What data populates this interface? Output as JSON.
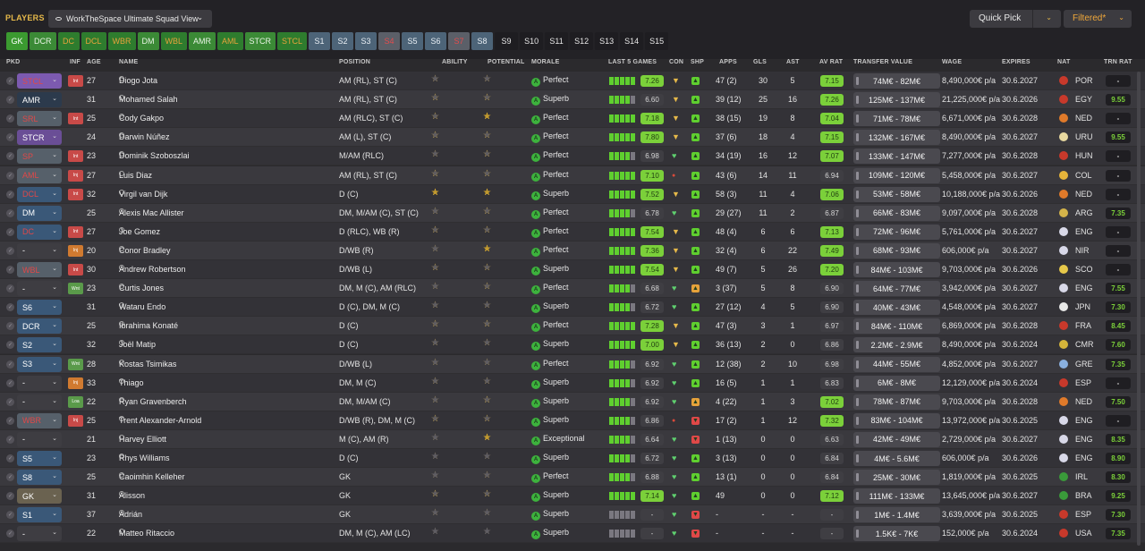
{
  "header": {
    "title": "PLAYERS",
    "view_label": "WorkTheSpace Ultimate Squad View",
    "quick_pick": "Quick Pick",
    "filter": "Filtered*"
  },
  "position_pills": [
    {
      "label": "GK",
      "style": "gk"
    },
    {
      "label": "DCR",
      "style": "pos"
    },
    {
      "label": "DC",
      "style": "alt"
    },
    {
      "label": "DCL",
      "style": "alt"
    },
    {
      "label": "WBR",
      "style": "alt"
    },
    {
      "label": "DM",
      "style": "pos"
    },
    {
      "label": "WBL",
      "style": "alt"
    },
    {
      "label": "AMR",
      "style": "pos"
    },
    {
      "label": "AML",
      "style": "alt"
    },
    {
      "label": "STCR",
      "style": "pos"
    },
    {
      "label": "STCL",
      "style": "alt"
    },
    {
      "label": "S1",
      "style": "s"
    },
    {
      "label": "S2",
      "style": "s"
    },
    {
      "label": "S3",
      "style": "s"
    },
    {
      "label": "S4",
      "style": "sr"
    },
    {
      "label": "S5",
      "style": "s"
    },
    {
      "label": "S6",
      "style": "s"
    },
    {
      "label": "S7",
      "style": "sr"
    },
    {
      "label": "S8",
      "style": "s"
    },
    {
      "label": "S9",
      "style": "sk"
    },
    {
      "label": "S10",
      "style": "sk"
    },
    {
      "label": "S11",
      "style": "sk"
    },
    {
      "label": "S12",
      "style": "sk"
    },
    {
      "label": "S13",
      "style": "sk"
    },
    {
      "label": "S14",
      "style": "sk"
    },
    {
      "label": "S15",
      "style": "sk"
    }
  ],
  "columns": {
    "pkd": "PKD",
    "inf": "INF",
    "age": "AGE",
    "name": "NAME",
    "position": "POSITION",
    "ability": "ABILITY",
    "potential": "POTENTIAL",
    "morale": "MORALE",
    "last5": "LAST 5 GAMES",
    "con": "CON",
    "shp": "SHP",
    "apps": "APPS",
    "gls": "GLS",
    "ast": "AST",
    "avrat": "AV RAT",
    "value": "TRANSFER VALUE",
    "wage": "WAGE",
    "expires": "EXPIRES",
    "nat": "NAT",
    "trn": "TRN RAT"
  },
  "colors": {
    "accent": "#e6b94a",
    "filter": "#f0a83a",
    "pill_green": "#3b8a36",
    "form_green": "#5fcf2f",
    "rating_green": "#7bd03a",
    "rating_grey": "#3f3e43"
  },
  "rows": [
    {
      "pkd": "STCL",
      "pkd_bg": "#7c5ab0",
      "pkd_fg": "#e04848",
      "inf": "Int",
      "inf_bg": "#c84a48",
      "age": "27",
      "name": "Diogo Jota",
      "position": "AM (RL), ST (C)",
      "ability": 3,
      "potential": 3,
      "morale": "Perfect",
      "form": 5,
      "rating": "7.26",
      "rating_hl": true,
      "con": "shield",
      "shp": "up",
      "apps": "47 (2)",
      "gls": "30",
      "ast": "5",
      "avrat": "7.15",
      "avrat_hl": true,
      "value": "74M€ - 82M€",
      "wage": "8,490,000€ p/a",
      "expires": "30.6.2027",
      "nat": "POR",
      "nat_c": "#c8392b",
      "trn": "-",
      "trn_c": "#d4d4d4"
    },
    {
      "pkd": "AMR",
      "pkd_bg": "#2c3a4c",
      "pkd_fg": "#ffffff",
      "inf": "",
      "inf_bg": "",
      "age": "31",
      "name": "Mohamed Salah",
      "position": "AM (RL), ST (C)",
      "ability": 4,
      "potential": 4,
      "morale": "Superb",
      "form": 4,
      "rating": "6.60",
      "rating_hl": false,
      "con": "shield",
      "shp": "up",
      "apps": "39 (12)",
      "gls": "25",
      "ast": "16",
      "avrat": "7.26",
      "avrat_hl": true,
      "value": "125M€ - 137M€",
      "wage": "21,225,000€ p/a",
      "expires": "30.6.2026",
      "nat": "EGY",
      "nat_c": "#c8392b",
      "trn": "9.55",
      "trn_c": "#7bd03a"
    },
    {
      "pkd": "SRL",
      "pkd_bg": "#56606a",
      "pkd_fg": "#e04848",
      "inf": "Int",
      "inf_bg": "#c84a48",
      "age": "25",
      "name": "Cody Gakpo",
      "position": "AM (RLC), ST (C)",
      "ability": 3.5,
      "potential": 4.5,
      "morale": "Perfect",
      "form": 5,
      "rating": "7.18",
      "rating_hl": true,
      "con": "shield",
      "shp": "up",
      "apps": "38 (15)",
      "gls": "19",
      "ast": "8",
      "avrat": "7.04",
      "avrat_hl": true,
      "value": "71M€ - 78M€",
      "wage": "6,671,000€ p/a",
      "expires": "30.6.2028",
      "nat": "NED",
      "nat_c": "#e07a2a",
      "trn": "-",
      "trn_c": "#d4d4d4"
    },
    {
      "pkd": "STCR",
      "pkd_bg": "#6a4e96",
      "pkd_fg": "#ffffff",
      "inf": "",
      "inf_bg": "",
      "age": "24",
      "name": "Darwin Núñez",
      "position": "AM (L), ST (C)",
      "ability": 4,
      "potential": 4,
      "morale": "Perfect",
      "form": 5,
      "rating": "7.80",
      "rating_hl": true,
      "con": "shield",
      "shp": "up",
      "apps": "37 (6)",
      "gls": "18",
      "ast": "4",
      "avrat": "7.15",
      "avrat_hl": true,
      "value": "132M€ - 167M€",
      "wage": "8,490,000€ p/a",
      "expires": "30.6.2027",
      "nat": "URU",
      "nat_c": "#e8d9a0",
      "trn": "9.55",
      "trn_c": "#7bd03a"
    },
    {
      "pkd": "SP",
      "pkd_bg": "#56606a",
      "pkd_fg": "#e04848",
      "inf": "Int",
      "inf_bg": "#c84a48",
      "age": "23",
      "name": "Dominik Szoboszlai",
      "position": "M/AM (RLC)",
      "ability": 3,
      "potential": 4,
      "morale": "Perfect",
      "form": 4,
      "rating": "6.98",
      "rating_hl": false,
      "con": "heart",
      "shp": "up",
      "apps": "34 (19)",
      "gls": "16",
      "ast": "12",
      "avrat": "7.07",
      "avrat_hl": true,
      "value": "133M€ - 147M€",
      "wage": "7,277,000€ p/a",
      "expires": "30.6.2028",
      "nat": "HUN",
      "nat_c": "#c8392b",
      "trn": "-",
      "trn_c": "#d4d4d4"
    },
    {
      "pkd": "AML",
      "pkd_bg": "#56606a",
      "pkd_fg": "#e04848",
      "inf": "Inj",
      "inf_bg": "#c84a48",
      "age": "27",
      "name": "Luis Diaz",
      "position": "AM (RL), ST (C)",
      "ability": 4,
      "potential": 4,
      "morale": "Perfect",
      "form": 5,
      "rating": "7.10",
      "rating_hl": true,
      "con": "dot",
      "shp": "up",
      "apps": "43 (6)",
      "gls": "14",
      "ast": "11",
      "avrat": "6.94",
      "avrat_hl": false,
      "value": "109M€ - 120M€",
      "wage": "5,458,000€ p/a",
      "expires": "30.6.2027",
      "nat": "COL",
      "nat_c": "#e6b43a",
      "trn": "-",
      "trn_c": "#d4d4d4"
    },
    {
      "pkd": "DCL",
      "pkd_bg": "#3a5878",
      "pkd_fg": "#e04848",
      "inf": "Int",
      "inf_bg": "#c84a48",
      "age": "32",
      "name": "Virgil van Dijk",
      "position": "D (C)",
      "ability": 4.5,
      "potential": 4.5,
      "morale": "Superb",
      "form": 5,
      "rating": "7.52",
      "rating_hl": true,
      "con": "shield",
      "shp": "up",
      "apps": "58 (3)",
      "gls": "11",
      "ast": "4",
      "avrat": "7.06",
      "avrat_hl": true,
      "value": "53M€ - 58M€",
      "wage": "10,188,000€ p/a",
      "expires": "30.6.2026",
      "nat": "NED",
      "nat_c": "#e07a2a",
      "trn": "-",
      "trn_c": "#d4d4d4"
    },
    {
      "pkd": "DM",
      "pkd_bg": "#3a5878",
      "pkd_fg": "#ffffff",
      "inf": "",
      "inf_bg": "",
      "age": "25",
      "name": "Alexis Mac Allister",
      "position": "DM, M/AM (C), ST (C)",
      "ability": 3,
      "potential": 4,
      "morale": "Perfect",
      "form": 4,
      "rating": "6.78",
      "rating_hl": false,
      "con": "heart",
      "shp": "up",
      "apps": "29 (27)",
      "gls": "11",
      "ast": "2",
      "avrat": "6.87",
      "avrat_hl": false,
      "value": "66M€ - 83M€",
      "wage": "9,097,000€ p/a",
      "expires": "30.6.2028",
      "nat": "ARG",
      "nat_c": "#d4b44a",
      "trn": "7.35",
      "trn_c": "#7bd03a"
    },
    {
      "pkd": "DC",
      "pkd_bg": "#3a5878",
      "pkd_fg": "#e04848",
      "inf": "Int",
      "inf_bg": "#c84a48",
      "age": "27",
      "name": "Joe Gomez",
      "position": "D (RLC), WB (R)",
      "ability": 3.5,
      "potential": 3.5,
      "morale": "Perfect",
      "form": 5,
      "rating": "7.54",
      "rating_hl": true,
      "con": "shield",
      "shp": "up",
      "apps": "48 (4)",
      "gls": "6",
      "ast": "6",
      "avrat": "7.13",
      "avrat_hl": true,
      "value": "72M€ - 96M€",
      "wage": "5,761,000€ p/a",
      "expires": "30.6.2027",
      "nat": "ENG",
      "nat_c": "#d8d8e8",
      "trn": "-",
      "trn_c": "#d4d4d4"
    },
    {
      "pkd": "-",
      "pkd_bg": "#3e3d42",
      "pkd_fg": "#ffffff",
      "inf": "Inj",
      "inf_bg": "#d07a30",
      "age": "20",
      "name": "Conor Bradley",
      "position": "D/WB (R)",
      "ability": 2.5,
      "potential": 4.5,
      "potential_white": true,
      "morale": "Perfect",
      "form": 5,
      "rating": "7.36",
      "rating_hl": true,
      "con": "shield",
      "shp": "up",
      "apps": "32 (4)",
      "gls": "6",
      "ast": "22",
      "avrat": "7.49",
      "avrat_hl": true,
      "value": "68M€ - 93M€",
      "wage": "606,000€ p/a",
      "expires": "30.6.2027",
      "nat": "NIR",
      "nat_c": "#d8d8e8",
      "trn": "-",
      "trn_c": "#d4d4d4"
    },
    {
      "pkd": "WBL",
      "pkd_bg": "#56606a",
      "pkd_fg": "#e04848",
      "inf": "Int",
      "inf_bg": "#c84a48",
      "age": "30",
      "name": "Andrew Robertson",
      "position": "D/WB (L)",
      "ability": 3.5,
      "potential": 3.5,
      "morale": "Superb",
      "form": 5,
      "rating": "7.54",
      "rating_hl": true,
      "con": "shield",
      "shp": "up",
      "apps": "49 (7)",
      "gls": "5",
      "ast": "26",
      "avrat": "7.20",
      "avrat_hl": true,
      "value": "84M€ - 103M€",
      "wage": "9,703,000€ p/a",
      "expires": "30.6.2026",
      "nat": "SCO",
      "nat_c": "#e6c84a",
      "trn": "-",
      "trn_c": "#d4d4d4"
    },
    {
      "pkd": "-",
      "pkd_bg": "#3e3d42",
      "pkd_fg": "#ffffff",
      "inf": "Wnt",
      "inf_bg": "#5a9a4a",
      "age": "23",
      "name": "Curtis Jones",
      "position": "DM, M (C), AM (RLC)",
      "ability": 2.5,
      "potential": 3.5,
      "morale": "Perfect",
      "form": 4,
      "rating": "6.68",
      "rating_hl": false,
      "con": "heart",
      "shp": "mid",
      "apps": "3 (37)",
      "gls": "5",
      "ast": "8",
      "avrat": "6.90",
      "avrat_hl": false,
      "value": "64M€ - 77M€",
      "wage": "3,942,000€ p/a",
      "expires": "30.6.2027",
      "nat": "ENG",
      "nat_c": "#d8d8e8",
      "trn": "7.55",
      "trn_c": "#7bd03a"
    },
    {
      "pkd": "S6",
      "pkd_bg": "#3a5878",
      "pkd_fg": "#ffffff",
      "inf": "",
      "inf_bg": "",
      "age": "31",
      "name": "Wataru Endo",
      "position": "D (C), DM, M (C)",
      "ability": 3,
      "potential": 3,
      "morale": "Superb",
      "form": 4,
      "rating": "6.72",
      "rating_hl": false,
      "con": "heart",
      "shp": "up",
      "apps": "27 (12)",
      "gls": "4",
      "ast": "5",
      "avrat": "6.90",
      "avrat_hl": false,
      "value": "40M€ - 43M€",
      "wage": "4,548,000€ p/a",
      "expires": "30.6.2027",
      "nat": "JPN",
      "nat_c": "#e8e8e8",
      "trn": "7.30",
      "trn_c": "#7bd03a"
    },
    {
      "pkd": "DCR",
      "pkd_bg": "#3a5878",
      "pkd_fg": "#ffffff",
      "inf": "",
      "inf_bg": "",
      "age": "25",
      "name": "Ibrahima Konaté",
      "position": "D (C)",
      "ability": 3.5,
      "potential": 4,
      "morale": "Perfect",
      "form": 5,
      "rating": "7.28",
      "rating_hl": true,
      "con": "shield",
      "shp": "up",
      "apps": "47 (3)",
      "gls": "3",
      "ast": "1",
      "avrat": "6.97",
      "avrat_hl": false,
      "value": "84M€ - 110M€",
      "wage": "6,869,000€ p/a",
      "expires": "30.6.2028",
      "nat": "FRA",
      "nat_c": "#c8392b",
      "trn": "8.45",
      "trn_c": "#7bd03a"
    },
    {
      "pkd": "S2",
      "pkd_bg": "#3a5878",
      "pkd_fg": "#ffffff",
      "inf": "",
      "inf_bg": "",
      "age": "32",
      "name": "Joël Matip",
      "position": "D (C)",
      "ability": 3,
      "potential": 3,
      "morale": "Superb",
      "form": 5,
      "rating": "7.00",
      "rating_hl": true,
      "con": "shield",
      "shp": "up",
      "apps": "36 (13)",
      "gls": "2",
      "ast": "0",
      "avrat": "6.86",
      "avrat_hl": false,
      "value": "2.2M€ - 2.9M€",
      "wage": "8,490,000€ p/a",
      "expires": "30.6.2024",
      "nat": "CMR",
      "nat_c": "#d4b43a",
      "trn": "7.60",
      "trn_c": "#7bd03a"
    },
    {
      "pkd": "S3",
      "pkd_bg": "#3a5878",
      "pkd_fg": "#ffffff",
      "inf": "Wnt",
      "inf_bg": "#5a9a4a",
      "age": "28",
      "name": "Kostas Tsimikas",
      "position": "D/WB (L)",
      "ability": 2.5,
      "potential": 2.5,
      "morale": "Perfect",
      "form": 4,
      "rating": "6.92",
      "rating_hl": false,
      "con": "heart",
      "shp": "up",
      "apps": "12 (38)",
      "gls": "2",
      "ast": "10",
      "avrat": "6.98",
      "avrat_hl": false,
      "value": "44M€ - 55M€",
      "wage": "4,852,000€ p/a",
      "expires": "30.6.2027",
      "nat": "GRE",
      "nat_c": "#8ab0e0",
      "trn": "7.35",
      "trn_c": "#7bd03a"
    },
    {
      "pkd": "-",
      "pkd_bg": "#3e3d42",
      "pkd_fg": "#ffffff",
      "inf": "Inj",
      "inf_bg": "#d07a30",
      "age": "33",
      "name": "Thiago",
      "position": "DM, M (C)",
      "ability": 3,
      "potential": 3,
      "morale": "Superb",
      "form": 4,
      "rating": "6.92",
      "rating_hl": false,
      "con": "heart",
      "shp": "up",
      "apps": "16 (5)",
      "gls": "1",
      "ast": "1",
      "avrat": "6.83",
      "avrat_hl": false,
      "value": "6M€ - 8M€",
      "wage": "12,129,000€ p/a",
      "expires": "30.6.2024",
      "nat": "ESP",
      "nat_c": "#c8392b",
      "trn": "-",
      "trn_c": "#d4d4d4"
    },
    {
      "pkd": "-",
      "pkd_bg": "#3e3d42",
      "pkd_fg": "#ffffff",
      "inf": "Loa",
      "inf_bg": "#5a9a4a",
      "age": "22",
      "name": "Ryan Gravenberch",
      "position": "DM, M/AM (C)",
      "ability": 2.5,
      "potential": 4,
      "morale": "Superb",
      "form": 4,
      "rating": "6.92",
      "rating_hl": false,
      "con": "heart",
      "shp": "mid",
      "apps": "4 (22)",
      "gls": "1",
      "ast": "3",
      "avrat": "7.02",
      "avrat_hl": true,
      "value": "78M€ - 87M€",
      "wage": "9,703,000€ p/a",
      "expires": "30.6.2028",
      "nat": "NED",
      "nat_c": "#e07a2a",
      "trn": "7.50",
      "trn_c": "#7bd03a"
    },
    {
      "pkd": "WBR",
      "pkd_bg": "#56606a",
      "pkd_fg": "#e04848",
      "inf": "Inj",
      "inf_bg": "#c84a48",
      "age": "25",
      "name": "Trent Alexander-Arnold",
      "position": "D/WB (R), DM, M (C)",
      "ability": 3.5,
      "potential": 3.5,
      "morale": "Superb",
      "form": 4,
      "rating": "6.86",
      "rating_hl": false,
      "con": "dot",
      "shp": "down",
      "apps": "17 (2)",
      "gls": "1",
      "ast": "12",
      "avrat": "7.32",
      "avrat_hl": true,
      "value": "83M€ - 104M€",
      "wage": "13,972,000€ p/a",
      "expires": "30.6.2025",
      "nat": "ENG",
      "nat_c": "#d8d8e8",
      "trn": "-",
      "trn_c": "#d4d4d4"
    },
    {
      "pkd": "-",
      "pkd_bg": "#3e3d42",
      "pkd_fg": "#ffffff",
      "inf": "",
      "inf_bg": "",
      "age": "21",
      "name": "Harvey Elliott",
      "position": "M (C), AM (R)",
      "ability": 2,
      "potential": 4.5,
      "morale": "Exceptional",
      "form": 4,
      "rating": "6.64",
      "rating_hl": false,
      "con": "heart",
      "shp": "down",
      "apps": "1 (13)",
      "gls": "0",
      "ast": "0",
      "avrat": "6.63",
      "avrat_hl": false,
      "value": "42M€ - 49M€",
      "wage": "2,729,000€ p/a",
      "expires": "30.6.2027",
      "nat": "ENG",
      "nat_c": "#d8d8e8",
      "trn": "8.35",
      "trn_c": "#7bd03a"
    },
    {
      "pkd": "S5",
      "pkd_bg": "#3a5878",
      "pkd_fg": "#ffffff",
      "inf": "",
      "inf_bg": "",
      "age": "23",
      "name": "Rhys Williams",
      "position": "D (C)",
      "ability": 1.5,
      "potential": 2,
      "morale": "Superb",
      "form": 4,
      "rating": "6.72",
      "rating_hl": false,
      "con": "heart",
      "shp": "up",
      "apps": "3 (13)",
      "gls": "0",
      "ast": "0",
      "avrat": "6.84",
      "avrat_hl": false,
      "value": "4M€ - 5.6M€",
      "wage": "606,000€ p/a",
      "expires": "30.6.2026",
      "nat": "ENG",
      "nat_c": "#d8d8e8",
      "trn": "8.90",
      "trn_c": "#7bd03a"
    },
    {
      "pkd": "S8",
      "pkd_bg": "#3a5878",
      "pkd_fg": "#ffffff",
      "inf": "",
      "inf_bg": "",
      "age": "25",
      "name": "Caoimhin Kelleher",
      "position": "GK",
      "ability": 2,
      "potential": 2.5,
      "morale": "Perfect",
      "form": 4,
      "rating": "6.88",
      "rating_hl": false,
      "con": "heart",
      "shp": "up",
      "apps": "13 (1)",
      "gls": "0",
      "ast": "0",
      "avrat": "6.84",
      "avrat_hl": false,
      "value": "25M€ - 30M€",
      "wage": "1,819,000€ p/a",
      "expires": "30.6.2025",
      "nat": "IRL",
      "nat_c": "#3a9a3a",
      "trn": "8.30",
      "trn_c": "#7bd03a"
    },
    {
      "pkd": "GK",
      "pkd_bg": "#6a6250",
      "pkd_fg": "#ffffff",
      "inf": "",
      "inf_bg": "",
      "age": "31",
      "name": "Alisson",
      "position": "GK",
      "ability": 4,
      "potential": 4,
      "morale": "Superb",
      "form": 5,
      "rating": "7.14",
      "rating_hl": true,
      "con": "heart",
      "shp": "up",
      "apps": "49",
      "gls": "0",
      "ast": "0",
      "avrat": "7.12",
      "avrat_hl": true,
      "value": "111M€ - 133M€",
      "wage": "13,645,000€ p/a",
      "expires": "30.6.2027",
      "nat": "BRA",
      "nat_c": "#3a9a3a",
      "trn": "9.25",
      "trn_c": "#7bd03a"
    },
    {
      "pkd": "S1",
      "pkd_bg": "#3a5878",
      "pkd_fg": "#ffffff",
      "inf": "",
      "inf_bg": "",
      "age": "37",
      "name": "Adrián",
      "position": "GK",
      "ability": 2,
      "potential": 2,
      "morale": "Superb",
      "form": 0,
      "rating": "-",
      "rating_hl": false,
      "con": "heart",
      "shp": "down",
      "apps": "-",
      "gls": "-",
      "ast": "-",
      "avrat": "-",
      "avrat_hl": false,
      "value": "1M€ - 1.4M€",
      "wage": "3,639,000€ p/a",
      "expires": "30.6.2025",
      "nat": "ESP",
      "nat_c": "#c8392b",
      "trn": "7.30",
      "trn_c": "#7bd03a"
    },
    {
      "pkd": "-",
      "pkd_bg": "#3e3d42",
      "pkd_fg": "#ffffff",
      "inf": "",
      "inf_bg": "",
      "age": "22",
      "name": "Matteo Ritaccio",
      "position": "DM, M (C), AM (LC)",
      "ability": 1,
      "potential": 1,
      "morale": "Superb",
      "form": 0,
      "rating": "-",
      "rating_hl": false,
      "con": "heart",
      "shp": "down",
      "apps": "-",
      "gls": "-",
      "ast": "-",
      "avrat": "-",
      "avrat_hl": false,
      "value": "1.5K€ - 7K€",
      "wage": "152,000€ p/a",
      "expires": "30.6.2024",
      "nat": "USA",
      "nat_c": "#c8392b",
      "trn": "7.35",
      "trn_c": "#7bd03a"
    }
  ]
}
